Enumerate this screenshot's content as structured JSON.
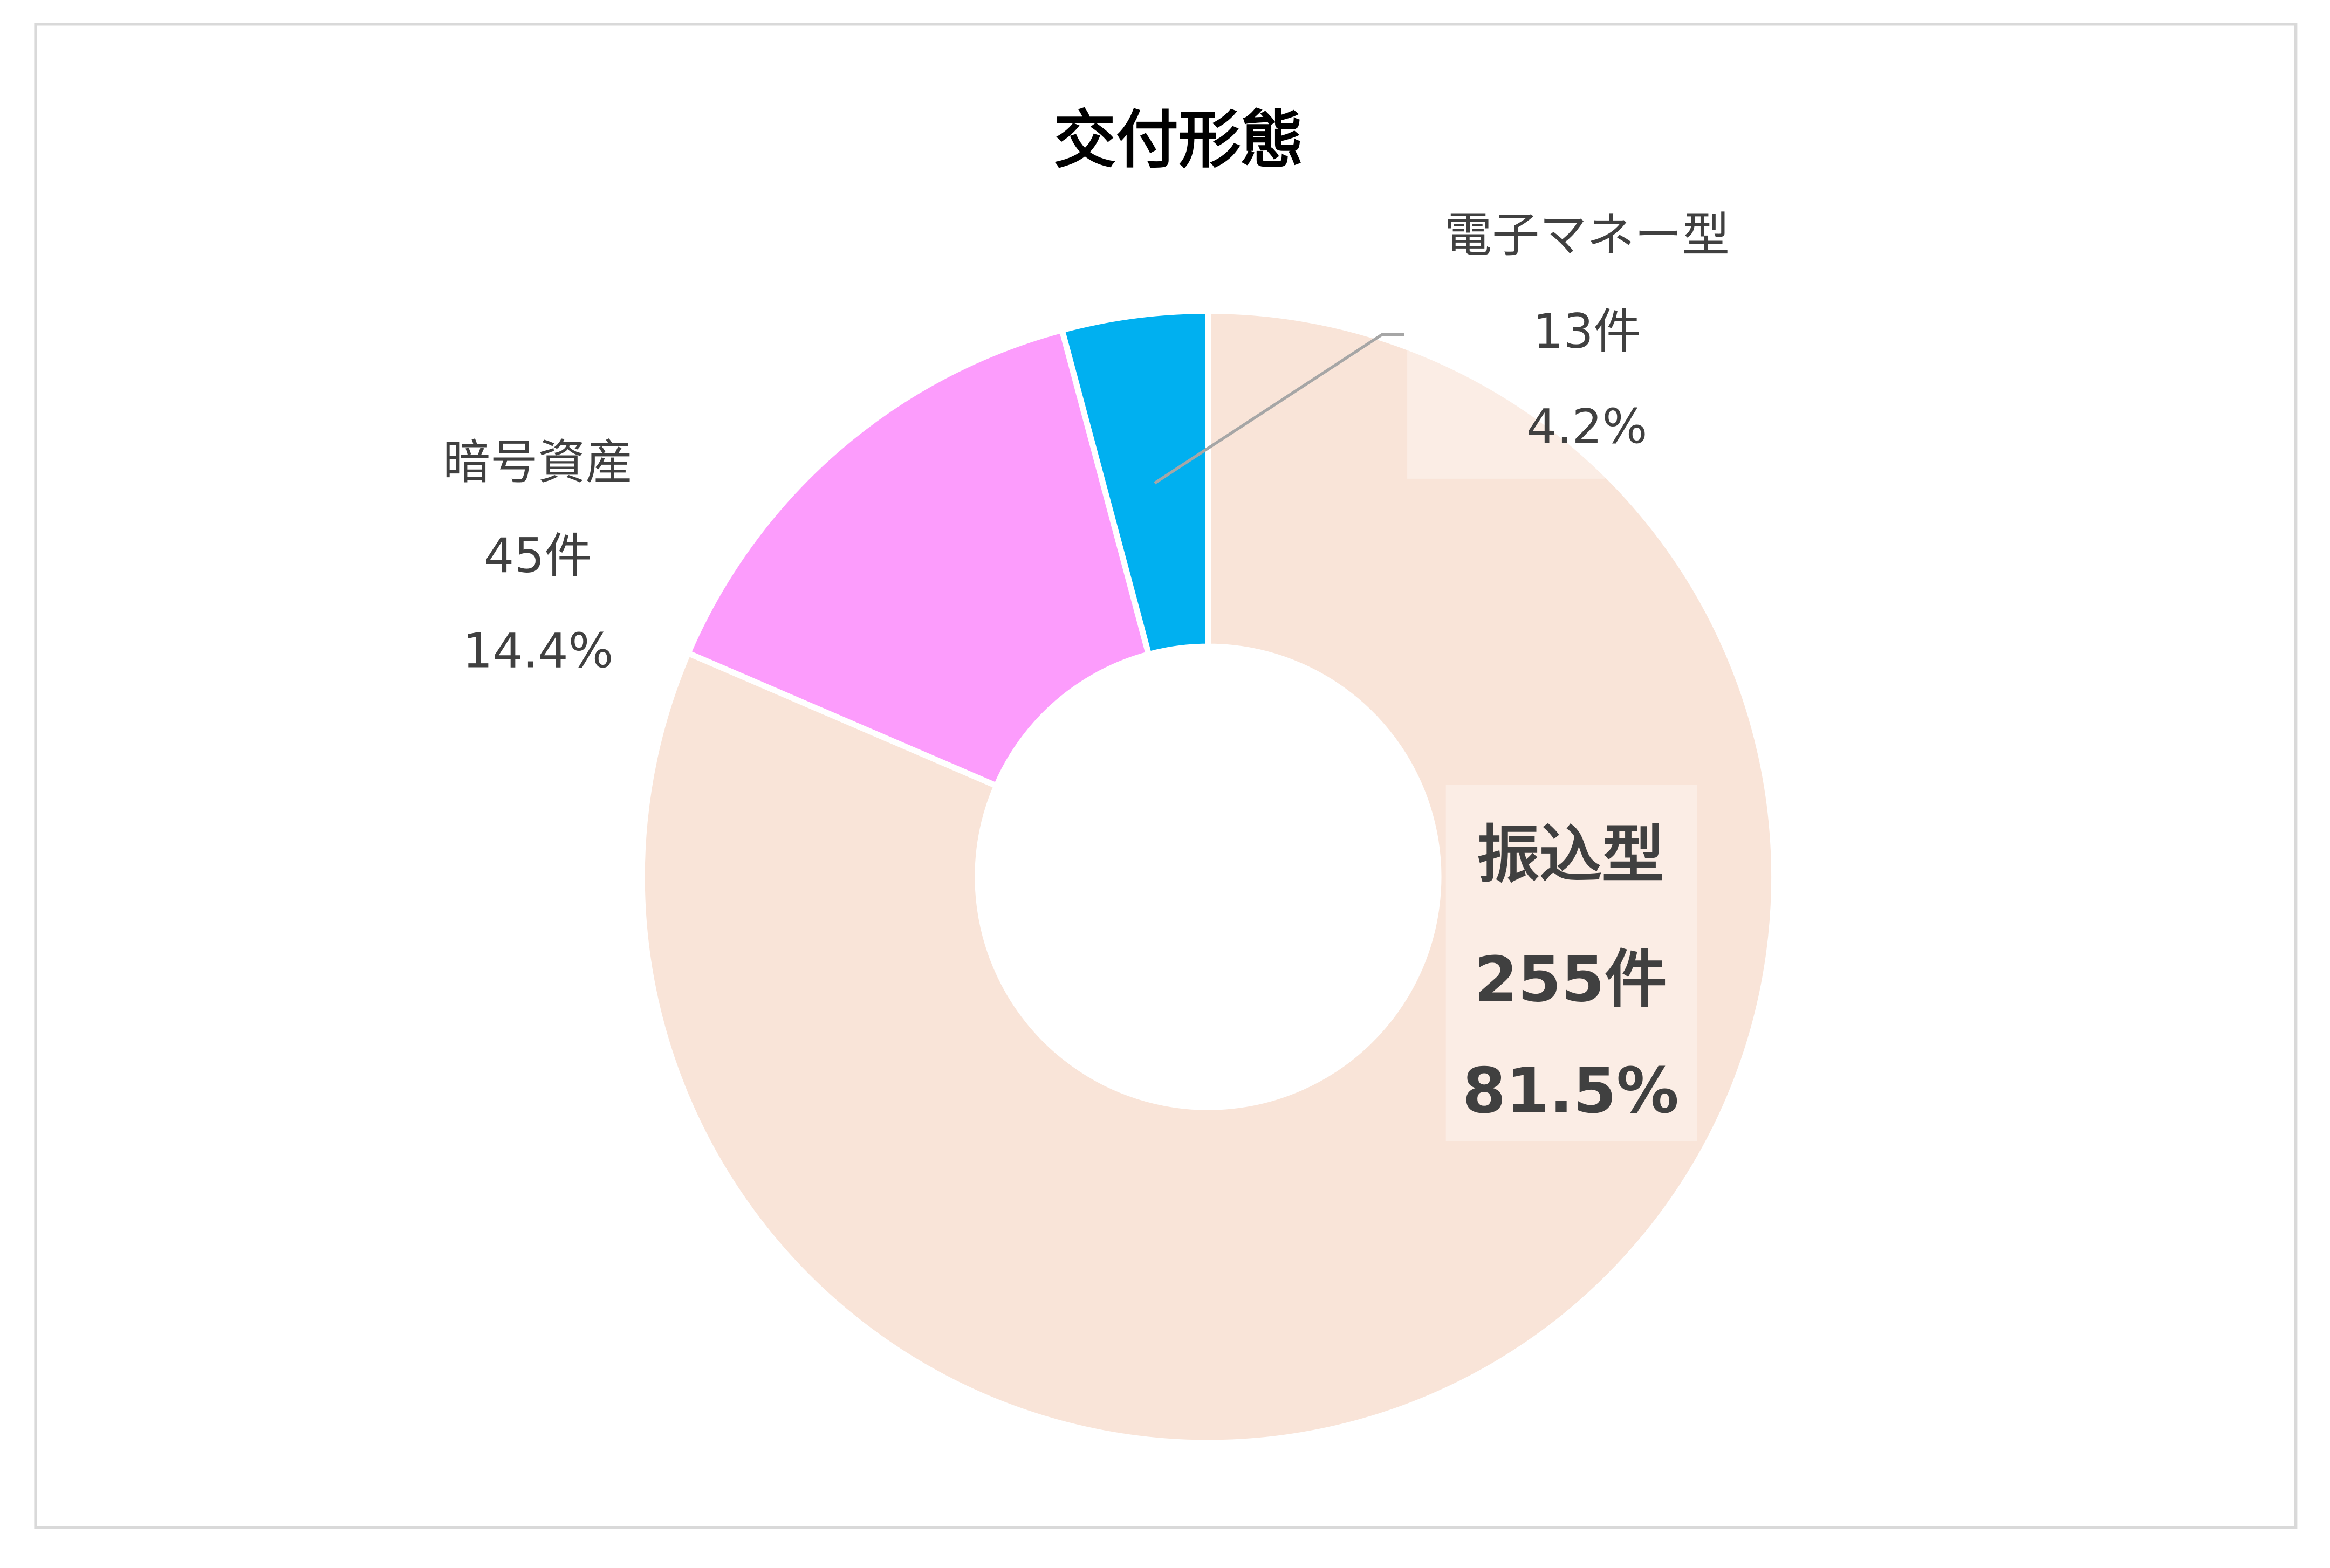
{
  "chart_data": {
    "type": "donut",
    "title": "交付形態",
    "categories": [
      "振込型",
      "暗号資産",
      "電子マネー型"
    ],
    "values": [
      255,
      45,
      13
    ],
    "value_labels": [
      "255件",
      "45件",
      "13件"
    ],
    "percentages": [
      81.5,
      14.4,
      4.2
    ],
    "percentage_labels": [
      "81.5%",
      "14.4%",
      "4.2%"
    ],
    "colors": [
      "#f9e4d8",
      "#fc9cfc",
      "#00b0f0"
    ]
  }
}
